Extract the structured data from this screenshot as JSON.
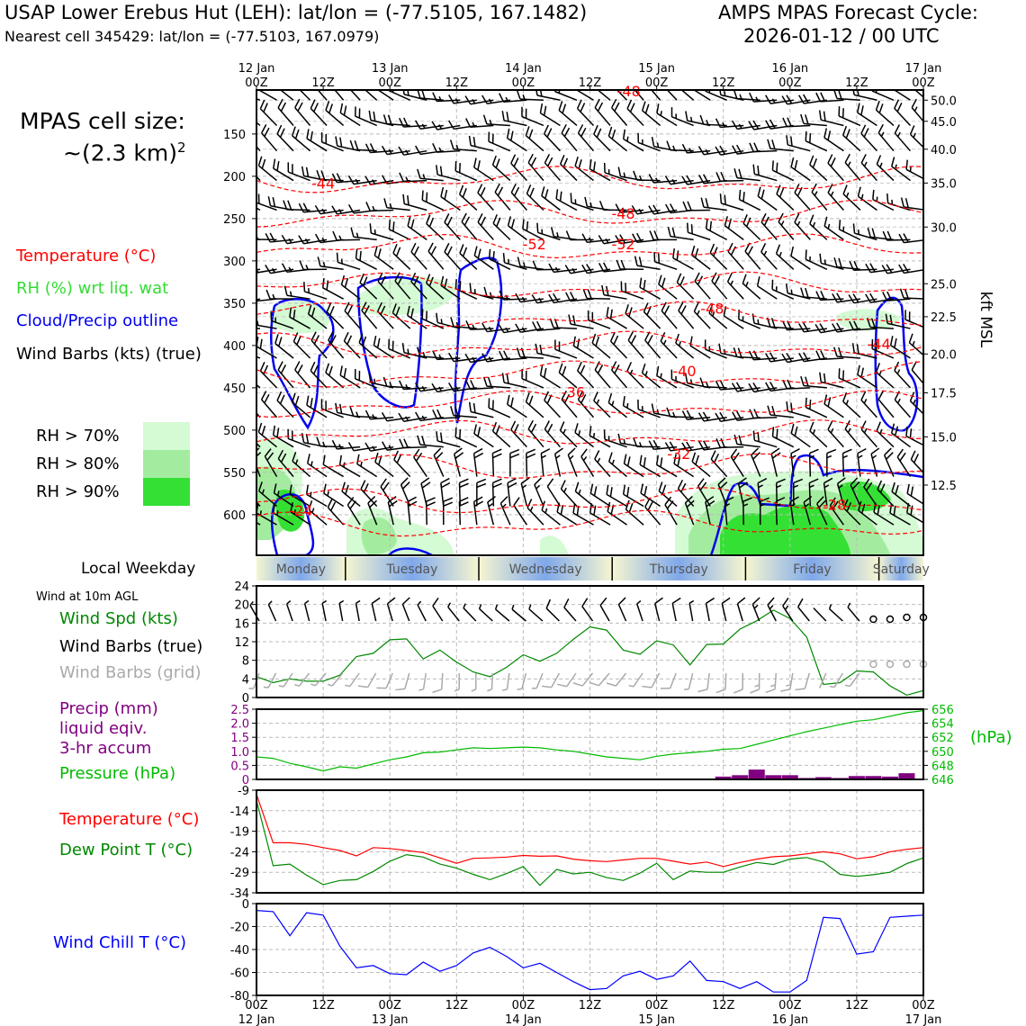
{
  "header": {
    "title_left": "USAP Lower Erebus Hut (LEH): lat/lon = (-77.5105, 167.1482)",
    "subtitle_left": "Nearest cell 345429: lat/lon = (-77.5103, 167.0979)",
    "title_right_1": "AMPS MPAS Forecast Cycle:",
    "title_right_2": "2026-01-12 / 00 UTC"
  },
  "cell_size": {
    "line1": "MPAS cell size:",
    "line2_base": "~(2.3 km)",
    "line2_sup": "2"
  },
  "legend": {
    "temperature": "Temperature (°C)",
    "rh": "RH (%) wrt liq. wat",
    "cloud": "Cloud/Precip outline",
    "wind": "Wind Barbs (kts) (true)",
    "rh70": "RH > 70%",
    "rh80": "RH > 80%",
    "rh90": "RH > 90%"
  },
  "colors": {
    "temperature": "#ff0000",
    "rh_label": "#33dd33",
    "cloud": "#0000ee",
    "rh70": "#d4fbd4",
    "rh80": "#a3ec9f",
    "rh90": "#35e035",
    "wind_spd": "#008800",
    "pressure": "#00bb00",
    "precip": "#800080",
    "dewpoint": "#008800",
    "windchill": "#0000ff",
    "grid_barb": "#aaaaaa"
  },
  "weekday": {
    "label": "Local Weekday",
    "days": [
      "Monday",
      "Tuesday",
      "Wednesday",
      "Thursday",
      "Friday",
      "Saturday"
    ]
  },
  "panel_labels": {
    "wind10m": "Wind at 10m AGL",
    "wind_spd": "Wind Spd (kts)",
    "wind_barbs_true": "Wind Barbs (true)",
    "wind_barbs_grid": "Wind Barbs (grid)",
    "precip_1": "Precip (mm)",
    "precip_2": "liquid eqiv.",
    "precip_3": "3-hr accum",
    "pressure": "Pressure (hPa)",
    "hpa_unit": "(hPa)",
    "temperature": "Temperature (°C)",
    "dewpoint": "Dew Point T (°C)",
    "windchill": "Wind Chill T (°C)"
  },
  "chart_data": [
    {
      "type": "heatmap",
      "name": "pressure-time cross section",
      "x_top_ticks": [
        {
          "hour": 0,
          "day": "12 Jan",
          "time": "00Z"
        },
        {
          "hour": 12,
          "day": "",
          "time": "12Z"
        },
        {
          "hour": 24,
          "day": "13 Jan",
          "time": "00Z"
        },
        {
          "hour": 36,
          "day": "",
          "time": "12Z"
        },
        {
          "hour": 48,
          "day": "14 Jan",
          "time": "00Z"
        },
        {
          "hour": 60,
          "day": "",
          "time": "12Z"
        },
        {
          "hour": 72,
          "day": "15 Jan",
          "time": "00Z"
        },
        {
          "hour": 84,
          "day": "",
          "time": "12Z"
        },
        {
          "hour": 96,
          "day": "16 Jan",
          "time": "00Z"
        },
        {
          "hour": 108,
          "day": "",
          "time": "12Z"
        },
        {
          "hour": 120,
          "day": "17 Jan",
          "time": "00Z"
        }
      ],
      "xlim": [
        0,
        120
      ],
      "ylim_hpa": [
        648,
        98
      ],
      "y_ticks_hpa": [
        150,
        200,
        250,
        300,
        350,
        400,
        450,
        500,
        550,
        600
      ],
      "right_axis_label": "kft MSL",
      "right_ticks_kft": [
        {
          "v": "50.0",
          "p": 110
        },
        {
          "v": "45.0",
          "p": 135
        },
        {
          "v": "40.0",
          "p": 168
        },
        {
          "v": "35.0",
          "p": 208
        },
        {
          "v": "30.0",
          "p": 260
        },
        {
          "v": "25.0",
          "p": 327
        },
        {
          "v": "22.5",
          "p": 366
        },
        {
          "v": "20.0",
          "p": 410
        },
        {
          "v": "17.5",
          "p": 456
        },
        {
          "v": "15.0",
          "p": 508
        },
        {
          "v": "12.5",
          "p": 565
        }
      ],
      "temperature_contour_labels": [
        {
          "t": "-44",
          "h": 12,
          "p": 208
        },
        {
          "t": "-48",
          "h": 66,
          "p": 244
        },
        {
          "t": "-52",
          "h": 50,
          "p": 280
        },
        {
          "t": "-52",
          "h": 66,
          "p": 280
        },
        {
          "t": "-48",
          "h": 82,
          "p": 356
        },
        {
          "t": "-44",
          "h": 112,
          "p": 398
        },
        {
          "t": "-40",
          "h": 77,
          "p": 430
        },
        {
          "t": "-36",
          "h": 57,
          "p": 455
        },
        {
          "t": "-32",
          "h": 76,
          "p": 528
        },
        {
          "t": "-28",
          "h": 104,
          "p": 588
        },
        {
          "t": "-24",
          "h": 8,
          "p": 595
        },
        {
          "t": "-48",
          "h": 67,
          "p": 99
        }
      ]
    },
    {
      "type": "line",
      "name": "wind speed 10m",
      "ylabel": "Wind Spd (kts)",
      "ylim": [
        0,
        24
      ],
      "yticks": [
        0,
        4,
        8,
        12,
        16,
        20,
        24
      ],
      "x": [
        0,
        3,
        6,
        9,
        12,
        15,
        18,
        21,
        24,
        27,
        30,
        33,
        36,
        39,
        42,
        45,
        48,
        51,
        54,
        57,
        60,
        63,
        66,
        69,
        72,
        75,
        78,
        81,
        84,
        87,
        90,
        93,
        96,
        99,
        102,
        105,
        108,
        111,
        114,
        117,
        120
      ],
      "values": [
        4.5,
        3.2,
        4.0,
        3.5,
        3.5,
        4.8,
        8.8,
        9.5,
        12.4,
        12.6,
        8.3,
        10.2,
        7.6,
        5.5,
        4.5,
        6.5,
        9.2,
        7.8,
        9.5,
        12.5,
        15.2,
        14.5,
        10.2,
        9.3,
        12.2,
        11.3,
        7.0,
        11.4,
        11.5,
        14.7,
        16.5,
        18.8,
        17.0,
        13.0,
        2.8,
        3.2,
        5.7,
        5.5,
        2.5,
        0.5,
        1.5
      ]
    },
    {
      "type": "bar",
      "name": "precip 3-hr accum",
      "ylabel": "Precip (mm)",
      "ylim": [
        0,
        2.5
      ],
      "yticks": [
        "0",
        "0.5",
        "1.0",
        "1.5",
        "2.0",
        "2.5"
      ],
      "x": [
        84,
        87,
        90,
        93,
        96,
        99,
        102,
        105,
        108,
        111,
        114,
        117
      ],
      "values": [
        0.1,
        0.15,
        0.35,
        0.15,
        0.15,
        0.05,
        0.08,
        0.05,
        0.12,
        0.12,
        0.1,
        0.22
      ]
    },
    {
      "type": "line",
      "name": "pressure",
      "ylabel": "Pressure (hPa)",
      "ylim": [
        646,
        656
      ],
      "yticks": [
        "646",
        "648",
        "650",
        "652",
        "654",
        "656"
      ],
      "x": [
        0,
        3,
        6,
        9,
        12,
        15,
        18,
        21,
        24,
        27,
        30,
        33,
        36,
        39,
        42,
        45,
        48,
        51,
        54,
        57,
        60,
        63,
        66,
        69,
        72,
        75,
        78,
        81,
        84,
        87,
        90,
        93,
        96,
        99,
        102,
        105,
        108,
        111,
        114,
        117,
        120
      ],
      "values": [
        649.2,
        649.0,
        648.3,
        647.8,
        647.2,
        647.8,
        647.6,
        648.2,
        648.8,
        649.2,
        649.8,
        649.9,
        650.2,
        650.5,
        650.4,
        650.5,
        650.6,
        650.5,
        650.2,
        650.0,
        649.6,
        649.2,
        649.0,
        648.8,
        649.3,
        649.6,
        649.8,
        650.0,
        650.3,
        650.4,
        651.0,
        651.6,
        652.2,
        652.8,
        653.3,
        653.8,
        654.3,
        654.5,
        655.0,
        655.5,
        655.8
      ]
    },
    {
      "type": "line",
      "name": "temperature and dew point",
      "ylabel": "Temperature (°C)",
      "ylim": [
        -34,
        -9
      ],
      "yticks": [
        "-9",
        "-14",
        "-19",
        "-24",
        "-29",
        "-34"
      ],
      "x": [
        0,
        3,
        6,
        9,
        12,
        15,
        18,
        21,
        24,
        27,
        30,
        33,
        36,
        39,
        42,
        45,
        48,
        51,
        54,
        57,
        60,
        63,
        66,
        69,
        72,
        75,
        78,
        81,
        84,
        87,
        90,
        93,
        96,
        99,
        102,
        105,
        108,
        111,
        114,
        117,
        120
      ],
      "series": [
        {
          "name": "Temperature (°C)",
          "values": [
            -10,
            -21.8,
            -21.8,
            -22.2,
            -23,
            -23.7,
            -25,
            -23,
            -23.2,
            -23.7,
            -24.2,
            -25.5,
            -26.8,
            -25.6,
            -25.5,
            -25.3,
            -24.9,
            -25.1,
            -25.0,
            -25.8,
            -26.2,
            -26.4,
            -26.0,
            -25.6,
            -25.6,
            -26.3,
            -27.0,
            -26.5,
            -27.6,
            -26.6,
            -25.8,
            -25.2,
            -25.0,
            -24.5,
            -24.0,
            -24.5,
            -25.7,
            -25.2,
            -24.0,
            -23.4,
            -23.0
          ]
        },
        {
          "name": "Dew Point T (°C)",
          "values": [
            -11.5,
            -27.4,
            -27.0,
            -29.7,
            -32.0,
            -31.0,
            -30.8,
            -28.8,
            -26.3,
            -24.7,
            -25.3,
            -27.0,
            -28.0,
            -29.5,
            -30.8,
            -29.3,
            -27.6,
            -32.2,
            -28.3,
            -29.4,
            -29.0,
            -30.3,
            -31.0,
            -29.2,
            -26.8,
            -30.8,
            -28.7,
            -29.0,
            -29.0,
            -27.7,
            -26.6,
            -27.1,
            -25.8,
            -25.4,
            -26.5,
            -29.5,
            -30.0,
            -29.6,
            -29.0,
            -26.9,
            -25.5
          ]
        }
      ]
    },
    {
      "type": "line",
      "name": "wind chill",
      "ylabel": "Wind Chill T (°C)",
      "ylim": [
        -80,
        0
      ],
      "yticks": [
        "0",
        "-20",
        "-40",
        "-60",
        "-80"
      ],
      "x": [
        0,
        3,
        6,
        9,
        12,
        15,
        18,
        21,
        24,
        27,
        30,
        33,
        36,
        39,
        42,
        45,
        48,
        51,
        54,
        57,
        60,
        63,
        66,
        69,
        72,
        75,
        78,
        81,
        84,
        87,
        90,
        93,
        96,
        99,
        102,
        105,
        108,
        111,
        114,
        117,
        120
      ],
      "values": [
        -6,
        -7,
        -28,
        -8,
        -10,
        -37,
        -56,
        -54,
        -61,
        -62,
        -51,
        -59,
        -54,
        -43,
        -38,
        -46,
        -56,
        -52,
        -60,
        -68,
        -75,
        -74,
        -63,
        -59,
        -66,
        -63,
        -50,
        -67,
        -68,
        -74,
        -68,
        -77,
        -77,
        -67,
        -12,
        -13,
        -44,
        -42,
        -12,
        -11,
        -10
      ]
    },
    {
      "type": "table",
      "name": "bottom time axis",
      "ticks": [
        {
          "hour": 0,
          "time": "00Z",
          "day": "12 Jan"
        },
        {
          "hour": 12,
          "time": "12Z",
          "day": ""
        },
        {
          "hour": 24,
          "time": "00Z",
          "day": "13 Jan"
        },
        {
          "hour": 36,
          "time": "12Z",
          "day": ""
        },
        {
          "hour": 48,
          "time": "00Z",
          "day": "14 Jan"
        },
        {
          "hour": 60,
          "time": "12Z",
          "day": ""
        },
        {
          "hour": 72,
          "time": "00Z",
          "day": "15 Jan"
        },
        {
          "hour": 84,
          "time": "12Z",
          "day": ""
        },
        {
          "hour": 96,
          "time": "00Z",
          "day": "16 Jan"
        },
        {
          "hour": 108,
          "time": "12Z",
          "day": ""
        },
        {
          "hour": 120,
          "time": "00Z",
          "day": "17 Jan"
        }
      ]
    }
  ]
}
